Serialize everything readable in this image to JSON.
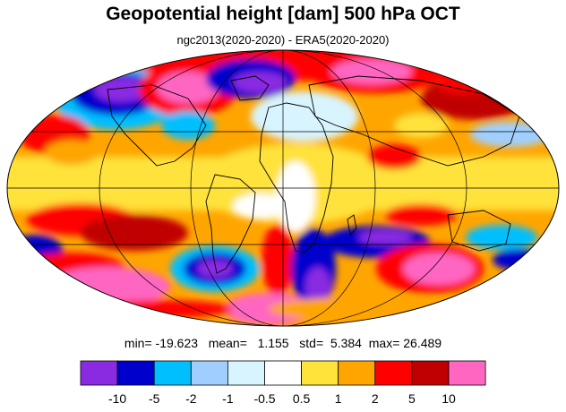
{
  "title": "Geopotential height [dam] 500 hPa OCT",
  "subtitle": "ngc2013(2020-2020) - ERA5(2020-2020)",
  "stats": {
    "min_label": "min=",
    "min": "-19.623",
    "mean_label": "mean=",
    "mean": "1.155",
    "std_label": "std=",
    "std": "5.384",
    "max_label": "max=",
    "max": "26.489"
  },
  "legend": {
    "colors": [
      "#8a2be2",
      "#0000cd",
      "#00bfff",
      "#a0cfff",
      "#d8f4ff",
      "#ffffff",
      "#ffe23a",
      "#ffa500",
      "#ff0000",
      "#c00000",
      "#ff66c2"
    ],
    "labels": [
      "-10",
      "-5",
      "-2",
      "-1",
      "-0.5",
      "0.5",
      "1",
      "2",
      "5",
      "10"
    ]
  }
}
